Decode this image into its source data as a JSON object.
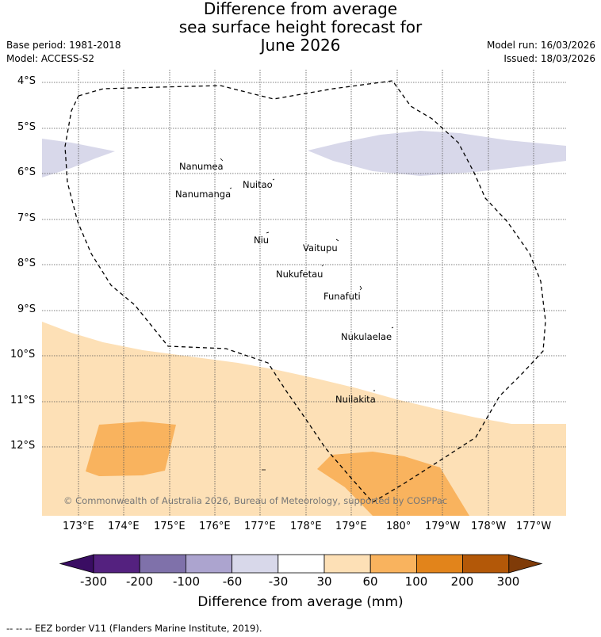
{
  "title": {
    "line1": "Difference from average",
    "line2": "sea surface height forecast for",
    "line3": "June 2026"
  },
  "meta": {
    "base_period": "Base period: 1981-2018",
    "model": "Model: ACCESS-S2",
    "model_run": "Model run: 16/03/2026",
    "issued": "Issued: 18/03/2026"
  },
  "map": {
    "lat_labels": [
      "4°S",
      "5°S",
      "6°S",
      "7°S",
      "8°S",
      "9°S",
      "10°S",
      "11°S",
      "12°S"
    ],
    "lon_labels": [
      "173°E",
      "174°E",
      "175°E",
      "176°E",
      "177°E",
      "178°E",
      "179°E",
      "180°",
      "179°W",
      "178°W",
      "177°W"
    ],
    "islands": [
      "Nanumea",
      "Nuitao",
      "Nanumanga",
      "Niu",
      "Vaitupu",
      "Nukufetau",
      "Funafuti",
      "Nukulaelae",
      "Nuilakita"
    ],
    "copyright": "© Commonwealth of Australia 2026, Bureau of Meteorology, supported by COSPPac",
    "colors": {
      "neg_light": "#d8d8ea",
      "pos_light": "#fde0b6",
      "pos_medium": "#f9b35e"
    }
  },
  "colorbar": {
    "ticks": [
      "-300",
      "-200",
      "-100",
      "-60",
      "-30",
      "30",
      "60",
      "100",
      "200",
      "300"
    ],
    "colors": [
      "#3a0d63",
      "#54217f",
      "#7f71aa",
      "#aca4cf",
      "#d8d8ea",
      "#ffffff",
      "#fde0b6",
      "#f9b35e",
      "#e2841b",
      "#b35808",
      "#7f3b08"
    ],
    "title": "Difference from average (mm)"
  },
  "footer": "--  --  -- EEZ border V11 (Flanders Marine Institute, 2019)."
}
